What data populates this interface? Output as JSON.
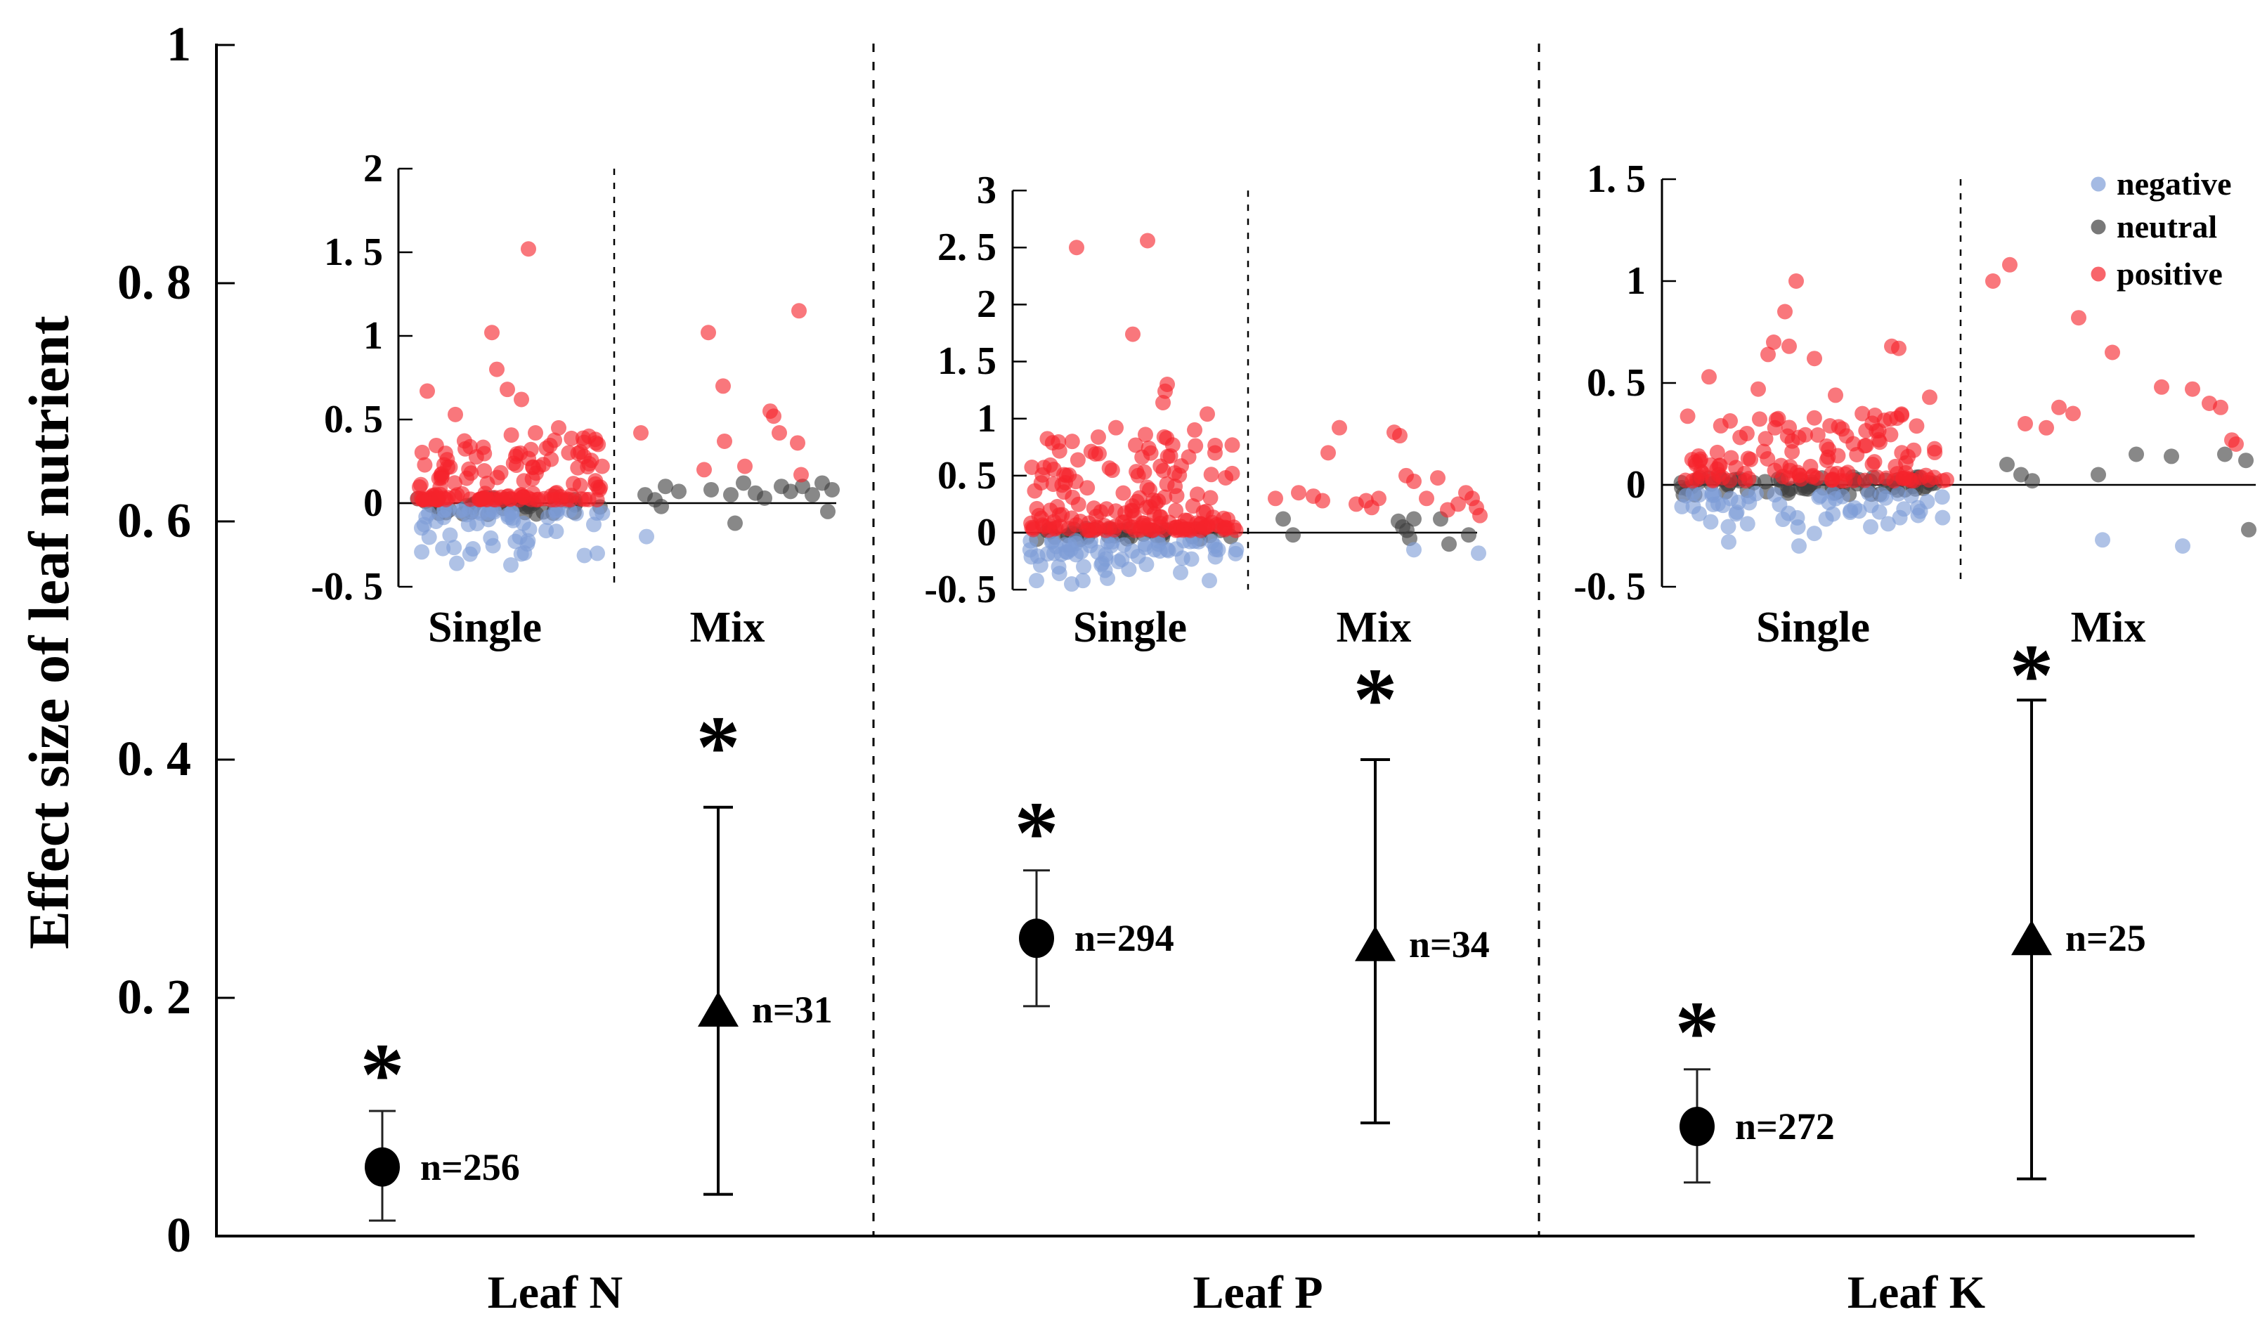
{
  "chart_data": {
    "type": "composite-scatter-errorbar",
    "main": {
      "y_axis": {
        "title": "Effect size of leaf nutrient",
        "range": [
          0,
          1
        ],
        "tick_values": [
          1,
          0.8,
          0.6,
          0.4,
          0.2,
          0
        ],
        "tick_labels": [
          "1",
          "0. 8",
          "0. 6",
          "0. 4",
          "0. 2",
          "0"
        ]
      },
      "panels": [
        {
          "label": "Leaf N",
          "single": {
            "marker": "circle",
            "mean": 0.058,
            "ci": [
              0.013,
              0.105
            ],
            "n": 256,
            "n_label": "n=256",
            "significant": true,
            "star": "*",
            "star_y": 0.15
          },
          "mix": {
            "marker": "triangle",
            "mean": 0.19,
            "ci": [
              0.035,
              0.36
            ],
            "n": 31,
            "n_label": "n=31",
            "significant": true,
            "star": "*",
            "star_y": 0.425
          }
        },
        {
          "label": "Leaf P",
          "single": {
            "marker": "circle",
            "mean": 0.25,
            "ci": [
              0.193,
              0.307
            ],
            "n": 294,
            "n_label": "n=294",
            "significant": true,
            "star": "*",
            "star_y": 0.353
          },
          "mix": {
            "marker": "triangle",
            "mean": 0.245,
            "ci": [
              0.095,
              0.4
            ],
            "n": 34,
            "n_label": "n=34",
            "significant": true,
            "star": "*",
            "star_y": 0.465
          }
        },
        {
          "label": "Leaf K",
          "single": {
            "marker": "circle",
            "mean": 0.092,
            "ci": [
              0.045,
              0.14
            ],
            "n": 272,
            "n_label": "n=272",
            "significant": true,
            "star": "*",
            "star_y": 0.185
          },
          "mix": {
            "marker": "triangle",
            "mean": 0.25,
            "ci": [
              0.048,
              0.45
            ],
            "n": 25,
            "n_label": "n=25",
            "significant": true,
            "star": "*",
            "star_y": 0.485
          }
        }
      ]
    },
    "legend": {
      "items": [
        {
          "label": "negative",
          "color": "#7E9DD7"
        },
        {
          "label": "neutral",
          "color": "#3F3F3F"
        },
        {
          "label": "positive",
          "color": "#F5232C"
        }
      ]
    },
    "colors": {
      "positive": "#F5232C",
      "neutral": "#3F3F3F",
      "negative": "#7E9DD7",
      "axis": "#000000"
    },
    "insets": [
      {
        "panel": "Leaf N",
        "ylim": [
          -0.5,
          2
        ],
        "tick_values": [
          2,
          1.5,
          1,
          0.5,
          0,
          -0.5
        ],
        "tick_labels": [
          "2",
          "1. 5",
          "1",
          "0. 5",
          "0",
          "-0. 5"
        ],
        "group_labels": [
          "Single",
          "Mix"
        ],
        "single": {
          "x_range": [
            592,
            858
          ],
          "clusters": [
            {
              "category": "neutral",
              "count": 46,
              "y_from": -0.07,
              "y_to": 0.04,
              "decay": 1.0,
              "seed": 11
            },
            {
              "category": "negative",
              "count": 57,
              "y_from": -0.04,
              "y_to": -0.33,
              "decay": 1.9,
              "seed": 12
            },
            {
              "category": "positive",
              "count": 139,
              "y_from": 0.02,
              "y_to": 0.42,
              "decay": 2.6,
              "seed": 13
            }
          ],
          "outliers": {
            "positive": [
              [
                752,
                1.52
              ],
              [
                700,
                1.02
              ],
              [
                707,
                0.8
              ],
              [
                722,
                0.68
              ],
              [
                742,
                0.62
              ],
              [
                608,
                0.67
              ],
              [
                648,
                0.53
              ],
              [
                795,
                0.45
              ],
              [
                762,
                0.42
              ],
              [
                838,
                0.4
              ],
              [
                848,
                0.36
              ]
            ],
            "negative": [
              [
                650,
                -0.36
              ],
              [
                727,
                -0.37
              ],
              [
                850,
                -0.3
              ]
            ]
          }
        },
        "mix": {
          "points": {
            "positive": [
              [
                912,
                0.42
              ],
              [
                1008,
                1.02
              ],
              [
                1137,
                1.15
              ],
              [
                1029,
                0.7
              ],
              [
                1096,
                0.55
              ],
              [
                1101,
                0.52
              ],
              [
                1109,
                0.42
              ],
              [
                1031,
                0.37
              ],
              [
                1135,
                0.36
              ],
              [
                1060,
                0.22
              ],
              [
                1002,
                0.2
              ],
              [
                1140,
                0.17
              ]
            ],
            "neutral": [
              [
                918,
                0.05
              ],
              [
                932,
                0.02
              ],
              [
                947,
                0.1
              ],
              [
                966,
                0.07
              ],
              [
                1012,
                0.08
              ],
              [
                1040,
                0.05
              ],
              [
                1058,
                0.12
              ],
              [
                1075,
                0.06
              ],
              [
                1088,
                0.03
              ],
              [
                1112,
                0.1
              ],
              [
                1125,
                0.07
              ],
              [
                1142,
                0.1
              ],
              [
                1156,
                0.05
              ],
              [
                1170,
                0.12
              ],
              [
                1184,
                0.08
              ],
              [
                1046,
                -0.12
              ],
              [
                1178,
                -0.05
              ],
              [
                941,
                -0.02
              ]
            ],
            "negative": [
              [
                920,
                -0.2
              ]
            ]
          }
        }
      },
      {
        "panel": "Leaf P",
        "ylim": [
          -0.5,
          3
        ],
        "tick_values": [
          3,
          2.5,
          2,
          1.5,
          1,
          0.5,
          0,
          -0.5
        ],
        "tick_labels": [
          "3",
          "2. 5",
          "2",
          "1. 5",
          "1",
          "0. 5",
          "0",
          "-0. 5"
        ],
        "group_labels": [
          "Single",
          "Mix"
        ],
        "single": {
          "x_range": [
            1465,
            1760
          ],
          "clusters": [
            {
              "category": "neutral",
              "count": 40,
              "y_from": -0.06,
              "y_to": 0.04,
              "decay": 1.0,
              "seed": 21
            },
            {
              "category": "negative",
              "count": 63,
              "y_from": -0.07,
              "y_to": -0.38,
              "decay": 1.6,
              "seed": 22
            },
            {
              "category": "positive",
              "count": 175,
              "y_from": 0.02,
              "y_to": 0.85,
              "decay": 2.2,
              "seed": 23
            }
          ],
          "outliers": {
            "positive": [
              [
                1532,
                2.5
              ],
              [
                1633,
                2.56
              ],
              [
                1612,
                1.74
              ],
              [
                1661,
                1.3
              ],
              [
                1658,
                1.24
              ],
              [
                1655,
                1.14
              ],
              [
                1718,
                1.04
              ],
              [
                1588,
                0.92
              ],
              [
                1700,
                0.9
              ],
              [
                1630,
                0.86
              ]
            ],
            "negative": [
              [
                1475,
                -0.42
              ],
              [
                1525,
                -0.45
              ],
              [
                1541,
                -0.42
              ],
              [
                1576,
                -0.4
              ],
              [
                1680,
                -0.35
              ],
              [
                1721,
                -0.42
              ]
            ]
          }
        },
        "mix": {
          "points": {
            "positive": [
              [
                1815,
                0.3
              ],
              [
                1848,
                0.35
              ],
              [
                1869,
                0.32
              ],
              [
                1882,
                0.28
              ],
              [
                1906,
                0.92
              ],
              [
                1930,
                0.25
              ],
              [
                1944,
                0.28
              ],
              [
                1952,
                0.22
              ],
              [
                1962,
                0.3
              ],
              [
                1984,
                0.88
              ],
              [
                1992,
                0.85
              ],
              [
                2001,
                0.5
              ],
              [
                2012,
                0.45
              ],
              [
                2030,
                0.3
              ],
              [
                2046,
                0.48
              ],
              [
                2060,
                0.2
              ],
              [
                2075,
                0.25
              ],
              [
                2086,
                0.35
              ],
              [
                2095,
                0.3
              ],
              [
                2101,
                0.22
              ],
              [
                2106,
                0.15
              ],
              [
                1890,
                0.7
              ]
            ],
            "neutral": [
              [
                1826,
                0.12
              ],
              [
                1840,
                -0.02
              ],
              [
                1990,
                0.1
              ],
              [
                1996,
                0.05
              ],
              [
                2002,
                0.02
              ],
              [
                2006,
                -0.05
              ],
              [
                2012,
                0.12
              ],
              [
                2050,
                0.12
              ],
              [
                2062,
                -0.1
              ],
              [
                2090,
                -0.02
              ]
            ],
            "negative": [
              [
                2012,
                -0.15
              ],
              [
                2104,
                -0.18
              ]
            ]
          }
        }
      },
      {
        "panel": "Leaf K",
        "ylim": [
          -0.5,
          1.5
        ],
        "tick_values": [
          1.5,
          1,
          0.5,
          0,
          -0.5
        ],
        "tick_labels": [
          "1. 5",
          "1",
          "0. 5",
          "0",
          "-0. 5"
        ],
        "group_labels": [
          "Single",
          "Mix"
        ],
        "single": {
          "x_range": [
            2390,
            2770
          ],
          "clusters": [
            {
              "category": "neutral",
              "count": 72,
              "y_from": -0.05,
              "y_to": 0.04,
              "decay": 1.0,
              "seed": 31
            },
            {
              "category": "negative",
              "count": 58,
              "y_from": -0.04,
              "y_to": -0.24,
              "decay": 1.9,
              "seed": 32
            },
            {
              "category": "positive",
              "count": 128,
              "y_from": 0.02,
              "y_to": 0.35,
              "decay": 2.2,
              "seed": 33
            }
          ],
          "outliers": {
            "positive": [
              [
                2556,
                1.0
              ],
              [
                2540,
                0.85
              ],
              [
                2524,
                0.7
              ],
              [
                2546,
                0.68
              ],
              [
                2516,
                0.64
              ],
              [
                2582,
                0.62
              ],
              [
                2432,
                0.53
              ],
              [
                2502,
                0.47
              ],
              [
                2612,
                0.44
              ],
              [
                2692,
                0.68
              ],
              [
                2702,
                0.67
              ],
              [
                2746,
                0.43
              ]
            ],
            "negative": [
              [
                2460,
                -0.28
              ],
              [
                2560,
                -0.3
              ]
            ]
          }
        },
        "mix": {
          "points": {
            "positive": [
              [
                2836,
                1.0
              ],
              [
                2860,
                1.08
              ],
              [
                2958,
                0.82
              ],
              [
                3006,
                0.65
              ],
              [
                2930,
                0.38
              ],
              [
                2950,
                0.35
              ],
              [
                2882,
                0.3
              ],
              [
                3076,
                0.48
              ],
              [
                3120,
                0.47
              ],
              [
                3144,
                0.4
              ],
              [
                3160,
                0.38
              ],
              [
                3176,
                0.22
              ],
              [
                3182,
                0.2
              ],
              [
                2912,
                0.28
              ]
            ],
            "neutral": [
              [
                2856,
                0.1
              ],
              [
                2876,
                0.05
              ],
              [
                2892,
                0.02
              ],
              [
                3040,
                0.15
              ],
              [
                3090,
                0.14
              ],
              [
                2986,
                0.05
              ],
              [
                3166,
                0.15
              ],
              [
                3196,
                0.12
              ],
              [
                3200,
                -0.22
              ]
            ],
            "negative": [
              [
                2992,
                -0.27
              ],
              [
                3106,
                -0.3
              ]
            ]
          }
        }
      }
    ]
  }
}
